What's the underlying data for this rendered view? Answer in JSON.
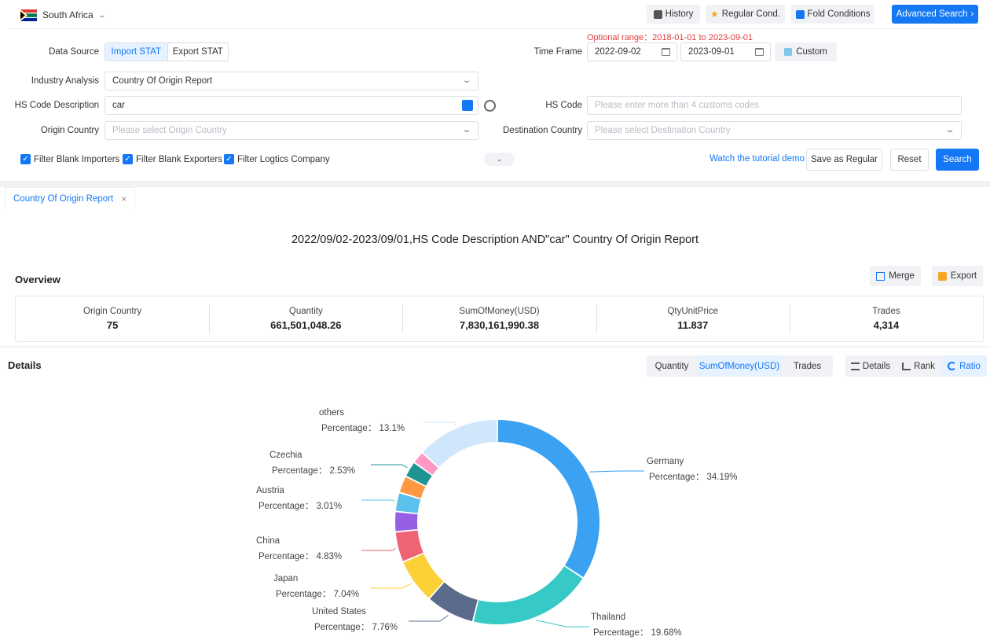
{
  "header": {
    "country": "South Africa",
    "buttons": {
      "history": "History",
      "regular": "Regular Cond.",
      "fold": "Fold Conditions",
      "advanced": "Advanced Search"
    }
  },
  "form": {
    "data_source": {
      "label": "Data Source",
      "options": [
        "Import STAT",
        "Export STAT"
      ],
      "selected": "Import STAT"
    },
    "time_frame": {
      "label": "Time Frame",
      "optional_range": "Optional range：2018-01-01 to 2023-09-01",
      "start": "2022-09-02",
      "end": "2023-09-01",
      "custom_label": "Custom"
    },
    "industry_analysis": {
      "label": "Industry Analysis",
      "value": "Country Of Origin Report"
    },
    "hs_code_description": {
      "label": "HS Code Description",
      "value": "car"
    },
    "hs_code": {
      "label": "HS Code",
      "placeholder": "Please enter more than 4 customs codes"
    },
    "origin_country": {
      "label": "Origin Country",
      "placeholder": "Please select Origin Country"
    },
    "destination_country": {
      "label": "Destination Country",
      "placeholder": "Please select Destination Country"
    },
    "filters": {
      "blank_importers": "Filter Blank Importers",
      "blank_exporters": "Filter Blank Exporters",
      "logistics": "Filter Logtics Company"
    },
    "tutorial_link": "Watch the tutorial demo",
    "actions": {
      "save_regular": "Save as Regular",
      "reset": "Reset",
      "search": "Search"
    }
  },
  "report_tab": {
    "label": "Country Of Origin Report",
    "close": "×"
  },
  "report": {
    "title": "2022/09/02-2023/09/01,HS Code Description AND\"car\" Country Of Origin Report",
    "overview_heading": "Overview",
    "merge_label": "Merge",
    "export_label": "Export",
    "stats": [
      {
        "label": "Origin Country",
        "value": "75"
      },
      {
        "label": "Quantity",
        "value": "661,501,048.26"
      },
      {
        "label": "SumOfMoney(USD)",
        "value": "7,830,161,990.38"
      },
      {
        "label": "QtyUnitPrice",
        "value": "11.837"
      },
      {
        "label": "Trades",
        "value": "4,314"
      }
    ]
  },
  "details": {
    "heading": "Details",
    "metric_tabs": [
      "Quantity",
      "SumOfMoney(USD)",
      "Trades"
    ],
    "metric_selected": "SumOfMoney(USD)",
    "view_tabs": [
      "Details",
      "Rank",
      "Ratio"
    ],
    "view_selected": "Ratio"
  },
  "chart_data": {
    "type": "pie",
    "donut": true,
    "label_prefix": "Percentage：",
    "slices": [
      {
        "name": "Germany",
        "value": 34.19,
        "label": "34.19%",
        "color": "#3ba1f2",
        "show_label": true
      },
      {
        "name": "Thailand",
        "value": 19.68,
        "label": "19.68%",
        "color": "#36c9c6",
        "show_label": true
      },
      {
        "name": "United States",
        "value": 7.76,
        "label": "7.76%",
        "color": "#5a6b8c",
        "show_label": true
      },
      {
        "name": "Japan",
        "value": 7.04,
        "label": "7.04%",
        "color": "#fbd136",
        "show_label": true
      },
      {
        "name": "China",
        "value": 4.83,
        "label": "4.83%",
        "color": "#f06375",
        "show_label": true
      },
      {
        "name": "",
        "value": 3.2,
        "color": "#975fe4",
        "show_label": false
      },
      {
        "name": "Austria",
        "value": 3.01,
        "label": "3.01%",
        "color": "#5bc0eb",
        "show_label": true
      },
      {
        "name": "",
        "value": 2.7,
        "color": "#ff9845",
        "show_label": false
      },
      {
        "name": "Czechia",
        "value": 2.53,
        "label": "2.53%",
        "color": "#1e9493",
        "show_label": true
      },
      {
        "name": "",
        "value": 2.0,
        "color": "#ff99c3",
        "show_label": false
      },
      {
        "name": "others",
        "value": 13.1,
        "label": "13.1%",
        "color": "#cfe6fb",
        "show_label": true
      }
    ]
  }
}
